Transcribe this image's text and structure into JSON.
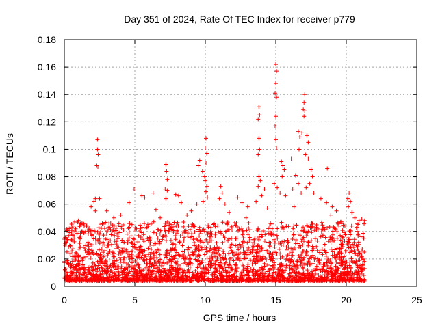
{
  "chart_data": {
    "type": "scatter",
    "title": "Day 351 of 2024, Rate Of TEC Index for receiver p779",
    "xlabel": "GPS time / hours",
    "ylabel": "ROTI / TECUs",
    "xlim": [
      0,
      25
    ],
    "ylim": [
      0,
      0.18
    ],
    "xticks": [
      0,
      5,
      10,
      15,
      20,
      25
    ],
    "yticks": [
      0,
      0.02,
      0.04,
      0.06,
      0.08,
      0.1,
      0.12,
      0.14,
      0.16,
      0.18
    ],
    "xtick_labels": [
      "0",
      "5",
      "10",
      "15",
      "20",
      "25"
    ],
    "ytick_labels": [
      "0",
      "0.02",
      "0.04",
      "0.06",
      "0.08",
      "0.1",
      "0.12",
      "0.14",
      "0.16",
      "0.18"
    ],
    "grid": true,
    "marker": "+",
    "color": "#ff0000",
    "data_range_hours": [
      0,
      21.3
    ],
    "series": [
      {
        "name": "ROTI",
        "points": [
          [
            2.35,
            0.107
          ],
          [
            2.35,
            0.1
          ],
          [
            2.4,
            0.096
          ],
          [
            2.3,
            0.088
          ],
          [
            2.38,
            0.087
          ],
          [
            2.2,
            0.064
          ],
          [
            2.1,
            0.062
          ],
          [
            2.5,
            0.064
          ],
          [
            1.9,
            0.058
          ],
          [
            2.2,
            0.055
          ],
          [
            7.2,
            0.089
          ],
          [
            7.25,
            0.084
          ],
          [
            7.3,
            0.078
          ],
          [
            7.15,
            0.071
          ],
          [
            7.3,
            0.07
          ],
          [
            7.2,
            0.064
          ],
          [
            5.7,
            0.065
          ],
          [
            4.95,
            0.071
          ],
          [
            5.5,
            0.066
          ],
          [
            6.3,
            0.068
          ],
          [
            4.6,
            0.061
          ],
          [
            7.9,
            0.067
          ],
          [
            8.1,
            0.066
          ],
          [
            8.3,
            0.061
          ],
          [
            9.0,
            0.055
          ],
          [
            9.4,
            0.06
          ],
          [
            9.6,
            0.092
          ],
          [
            9.5,
            0.088
          ],
          [
            9.8,
            0.084
          ],
          [
            10.05,
            0.108
          ],
          [
            10.0,
            0.101
          ],
          [
            10.1,
            0.097
          ],
          [
            10.05,
            0.09
          ],
          [
            9.95,
            0.08
          ],
          [
            10.0,
            0.077
          ],
          [
            10.1,
            0.073
          ],
          [
            10.05,
            0.069
          ],
          [
            10.15,
            0.065
          ],
          [
            9.85,
            0.062
          ],
          [
            11.1,
            0.073
          ],
          [
            11.2,
            0.068
          ],
          [
            11.0,
            0.064
          ],
          [
            11.4,
            0.06
          ],
          [
            12.3,
            0.065
          ],
          [
            12.6,
            0.061
          ],
          [
            13.0,
            0.058
          ],
          [
            13.8,
            0.131
          ],
          [
            13.85,
            0.125
          ],
          [
            13.75,
            0.122
          ],
          [
            13.8,
            0.108
          ],
          [
            13.85,
            0.1
          ],
          [
            13.75,
            0.096
          ],
          [
            13.8,
            0.08
          ],
          [
            13.9,
            0.077
          ],
          [
            13.75,
            0.073
          ],
          [
            14.2,
            0.071
          ],
          [
            14.0,
            0.066
          ],
          [
            13.6,
            0.062
          ],
          [
            15.0,
            0.162
          ],
          [
            15.05,
            0.157
          ],
          [
            15.0,
            0.148
          ],
          [
            14.95,
            0.141
          ],
          [
            15.05,
            0.138
          ],
          [
            15.0,
            0.124
          ],
          [
            14.95,
            0.117
          ],
          [
            15.0,
            0.107
          ],
          [
            15.05,
            0.101
          ],
          [
            14.9,
            0.075
          ],
          [
            15.1,
            0.072
          ],
          [
            15.4,
            0.091
          ],
          [
            15.5,
            0.088
          ],
          [
            15.6,
            0.085
          ],
          [
            15.45,
            0.08
          ],
          [
            15.3,
            0.068
          ],
          [
            15.7,
            0.066
          ],
          [
            16.1,
            0.093
          ],
          [
            16.4,
            0.081
          ],
          [
            16.6,
            0.075
          ],
          [
            16.2,
            0.071
          ],
          [
            16.8,
            0.068
          ],
          [
            17.05,
            0.14
          ],
          [
            17.0,
            0.134
          ],
          [
            16.95,
            0.129
          ],
          [
            17.05,
            0.128
          ],
          [
            17.0,
            0.124
          ],
          [
            16.6,
            0.113
          ],
          [
            16.7,
            0.109
          ],
          [
            16.85,
            0.112
          ],
          [
            17.2,
            0.11
          ],
          [
            17.3,
            0.105
          ],
          [
            16.65,
            0.1
          ],
          [
            17.1,
            0.096
          ],
          [
            17.3,
            0.093
          ],
          [
            17.5,
            0.085
          ],
          [
            17.6,
            0.08
          ],
          [
            17.4,
            0.075
          ],
          [
            17.15,
            0.072
          ],
          [
            17.7,
            0.068
          ],
          [
            18.65,
            0.086
          ],
          [
            18.2,
            0.064
          ],
          [
            18.6,
            0.061
          ],
          [
            19.0,
            0.058
          ],
          [
            19.3,
            0.055
          ],
          [
            20.2,
            0.068
          ],
          [
            20.1,
            0.064
          ],
          [
            20.3,
            0.062
          ],
          [
            20.15,
            0.058
          ],
          [
            20.4,
            0.054
          ],
          [
            20.6,
            0.05
          ],
          [
            20.9,
            0.048
          ],
          [
            21.1,
            0.049
          ],
          [
            21.3,
            0.048
          ],
          [
            21.25,
            0.035
          ],
          [
            21.2,
            0.02
          ],
          [
            21.3,
            0.013
          ],
          [
            21.25,
            0.008
          ],
          [
            0.05,
            0.03
          ],
          [
            0.1,
            0.035
          ],
          [
            0.15,
            0.032
          ],
          [
            0.0,
            0.018
          ],
          [
            0.05,
            0.012
          ],
          [
            0.1,
            0.008
          ],
          [
            0.3,
            0.037
          ],
          [
            0.5,
            0.034
          ],
          [
            0.8,
            0.042
          ],
          [
            1.0,
            0.048
          ],
          [
            1.2,
            0.045
          ],
          [
            1.5,
            0.04
          ],
          [
            3.0,
            0.055
          ],
          [
            3.5,
            0.05
          ],
          [
            4.0,
            0.052
          ],
          [
            6.5,
            0.056
          ],
          [
            6.8,
            0.05
          ],
          [
            8.7,
            0.052
          ],
          [
            11.7,
            0.054
          ],
          [
            12.9,
            0.05
          ],
          [
            14.4,
            0.057
          ],
          [
            16.3,
            0.058
          ],
          [
            18.9,
            0.052
          ],
          [
            19.6,
            0.047
          ],
          [
            19.9,
            0.044
          ]
        ]
      }
    ]
  }
}
